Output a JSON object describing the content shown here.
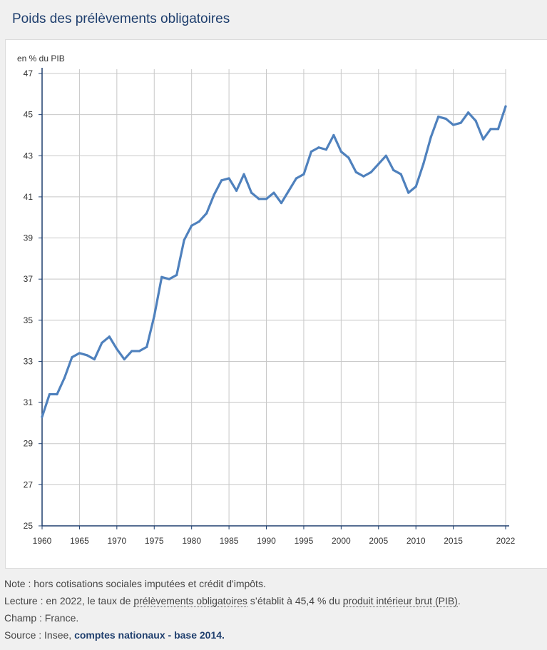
{
  "title": "Poids des prélèvements obligatoires",
  "chart_data": {
    "type": "line",
    "ylabel": "en % du PIB",
    "ylim": [
      25,
      47
    ],
    "yticks": [
      25,
      27,
      29,
      31,
      33,
      35,
      37,
      39,
      41,
      43,
      45,
      47
    ],
    "xlim": [
      1960,
      2022
    ],
    "xticks": [
      1960,
      1965,
      1970,
      1975,
      1980,
      1985,
      1990,
      1995,
      2000,
      2005,
      2010,
      2015,
      2022
    ],
    "grid": true,
    "line_color": "#4f81bd",
    "series": [
      {
        "name": "Prélèvements obligatoires",
        "x": [
          1960,
          1961,
          1962,
          1963,
          1964,
          1965,
          1966,
          1967,
          1968,
          1969,
          1970,
          1971,
          1972,
          1973,
          1974,
          1975,
          1976,
          1977,
          1978,
          1979,
          1980,
          1981,
          1982,
          1983,
          1984,
          1985,
          1986,
          1987,
          1988,
          1989,
          1990,
          1991,
          1992,
          1993,
          1994,
          1995,
          1996,
          1997,
          1998,
          1999,
          2000,
          2001,
          2002,
          2003,
          2004,
          2005,
          2006,
          2007,
          2008,
          2009,
          2010,
          2011,
          2012,
          2013,
          2014,
          2015,
          2016,
          2017,
          2018,
          2019,
          2020,
          2021,
          2022
        ],
        "values": [
          30.3,
          31.4,
          31.4,
          32.2,
          33.2,
          33.4,
          33.3,
          33.1,
          33.9,
          34.2,
          33.6,
          33.1,
          33.5,
          33.5,
          33.7,
          35.2,
          37.1,
          37.0,
          37.2,
          38.9,
          39.6,
          39.8,
          40.2,
          41.1,
          41.8,
          41.9,
          41.3,
          42.1,
          41.2,
          40.9,
          40.9,
          41.2,
          40.7,
          41.3,
          41.9,
          42.1,
          43.2,
          43.4,
          43.3,
          44.0,
          43.2,
          42.9,
          42.2,
          42.0,
          42.2,
          42.6,
          43.0,
          42.3,
          42.1,
          41.2,
          41.5,
          42.6,
          43.9,
          44.9,
          44.8,
          44.5,
          44.6,
          45.1,
          44.7,
          43.8,
          44.3,
          44.3,
          45.4
        ]
      }
    ]
  },
  "notes": {
    "note": "Note : hors cotisations sociales imputées et crédit d'impôts.",
    "lecture_prefix": "Lecture : en 2022, le taux de ",
    "lecture_link1": "prélèvements obligatoires",
    "lecture_mid": " s’établit à 45,4 % du ",
    "lecture_link2": "produit intérieur brut (PIB)",
    "lecture_end": ".",
    "champ": "Champ : France.",
    "source_prefix": "Source : Insee, ",
    "source_bold": "comptes nationaux - base 2014."
  }
}
